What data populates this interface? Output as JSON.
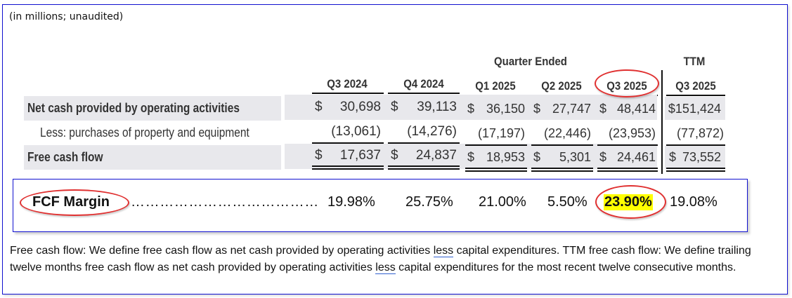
{
  "caption": "(in millions; unaudited)",
  "header": {
    "group_quarter": "Quarter Ended",
    "group_ttm": "TTM",
    "columns": [
      "Q3 2024",
      "Q4 2024",
      "Q1 2025",
      "Q2 2025",
      "Q3 2025",
      "Q3 2025"
    ]
  },
  "rows": [
    {
      "label": "Net cash provided by operating activities",
      "bold": true,
      "cells": [
        {
          "prefix": "$",
          "value": "30,698"
        },
        {
          "prefix": "$",
          "value": "39,113"
        },
        {
          "prefix": "$",
          "value": "36,150"
        },
        {
          "prefix": "$",
          "value": "27,747"
        },
        {
          "prefix": "$",
          "value": "48,414"
        },
        {
          "prefix": "$",
          "value": "151,424"
        }
      ]
    },
    {
      "label": "Less: purchases of property and equipment",
      "bold": false,
      "cells": [
        {
          "prefix": "",
          "value": "(13,061)"
        },
        {
          "prefix": "",
          "value": "(14,276)"
        },
        {
          "prefix": "",
          "value": "(17,197)"
        },
        {
          "prefix": "",
          "value": "(22,446)"
        },
        {
          "prefix": "",
          "value": "(23,953)"
        },
        {
          "prefix": "",
          "value": "(77,872)"
        }
      ]
    },
    {
      "label": "Free cash flow",
      "bold": true,
      "cells": [
        {
          "prefix": "$",
          "value": "17,637"
        },
        {
          "prefix": "$",
          "value": "24,837"
        },
        {
          "prefix": "$",
          "value": "18,953"
        },
        {
          "prefix": "$",
          "value": "5,301"
        },
        {
          "prefix": "$",
          "value": "24,461"
        },
        {
          "prefix": "$",
          "value": "73,552"
        }
      ]
    }
  ],
  "fcf_margin": {
    "label": "FCF Margin",
    "leader": "…………………………………",
    "values": [
      "19.98%",
      "25.75%",
      "21.00%",
      "5.50%",
      "23.90%",
      "19.08%"
    ],
    "highlight_index": 4,
    "highlight_color": "#ffff00"
  },
  "footnote": {
    "line_parts": [
      "Free cash flow: We define free cash flow as net cash provided by operating activities ",
      "less",
      " capital expenditures. TTM free cash flow: We define trailing twelve months free cash flow as net cash provided by operating activities ",
      "less",
      " capital expenditures for the most recent twelve consecutive months."
    ]
  },
  "colors": {
    "frame_border": "#1010d0",
    "annotation_ellipse": "#e03030",
    "row_shading": "#e8e8ec"
  }
}
